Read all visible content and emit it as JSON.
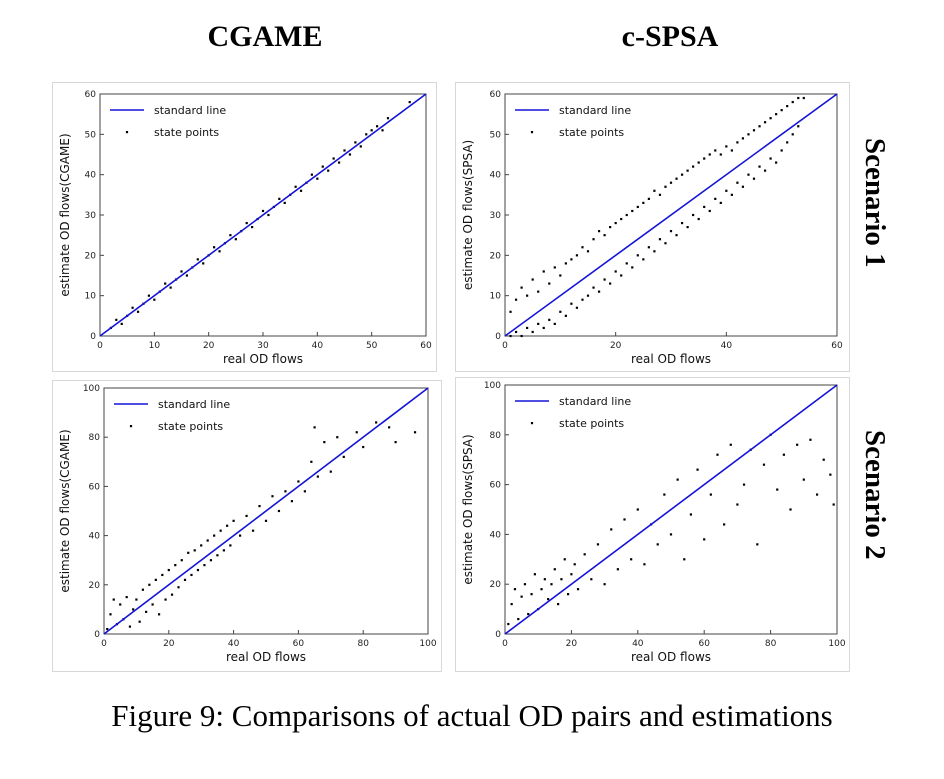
{
  "column_titles": [
    "CGAME",
    "c-SPSA"
  ],
  "row_titles": [
    "Scenario 1",
    "Scenario 2"
  ],
  "caption": "Figure 9: Comparisons of actual OD pairs and estimations",
  "colors": {
    "line": "#1414d8",
    "points": "#000000",
    "frame": "#444444"
  },
  "chart_data": [
    {
      "type": "scatter",
      "panel": "Scenario 1 - CGAME",
      "xlabel": "real OD flows",
      "ylabel": "estimate OD flows(CGAME)",
      "xlim": [
        0,
        60
      ],
      "ylim": [
        0,
        60
      ],
      "xticks": [
        0,
        10,
        20,
        30,
        40,
        50,
        60
      ],
      "yticks": [
        0,
        10,
        20,
        30,
        40,
        50,
        60
      ],
      "legend": [
        "standard line",
        "state points"
      ],
      "legend_position": "top-left",
      "standard_line": [
        [
          0,
          0
        ],
        [
          60,
          60
        ]
      ],
      "points": [
        [
          2,
          2
        ],
        [
          3,
          4
        ],
        [
          4,
          3
        ],
        [
          5,
          5
        ],
        [
          6,
          7
        ],
        [
          7,
          6
        ],
        [
          8,
          8
        ],
        [
          9,
          10
        ],
        [
          10,
          9
        ],
        [
          11,
          11
        ],
        [
          12,
          13
        ],
        [
          13,
          12
        ],
        [
          14,
          14
        ],
        [
          15,
          16
        ],
        [
          16,
          15
        ],
        [
          17,
          17
        ],
        [
          18,
          19
        ],
        [
          19,
          18
        ],
        [
          20,
          20
        ],
        [
          21,
          22
        ],
        [
          22,
          21
        ],
        [
          23,
          23
        ],
        [
          24,
          25
        ],
        [
          25,
          24
        ],
        [
          26,
          26
        ],
        [
          27,
          28
        ],
        [
          28,
          27
        ],
        [
          29,
          29
        ],
        [
          30,
          31
        ],
        [
          31,
          30
        ],
        [
          32,
          32
        ],
        [
          33,
          34
        ],
        [
          34,
          33
        ],
        [
          35,
          35
        ],
        [
          36,
          37
        ],
        [
          37,
          36
        ],
        [
          38,
          38
        ],
        [
          39,
          40
        ],
        [
          40,
          39
        ],
        [
          41,
          42
        ],
        [
          42,
          41
        ],
        [
          43,
          44
        ],
        [
          44,
          43
        ],
        [
          45,
          46
        ],
        [
          46,
          45
        ],
        [
          47,
          48
        ],
        [
          48,
          47
        ],
        [
          49,
          50
        ],
        [
          50,
          51
        ],
        [
          51,
          52
        ],
        [
          52,
          51
        ],
        [
          53,
          54
        ],
        [
          57,
          58
        ]
      ]
    },
    {
      "type": "scatter",
      "panel": "Scenario 1 - c-SPSA",
      "xlabel": "real OD flows",
      "ylabel": "estimate OD flows(SPSA)",
      "xlim": [
        0,
        60
      ],
      "ylim": [
        0,
        60
      ],
      "xticks": [
        0,
        20,
        40,
        60
      ],
      "yticks": [
        0,
        10,
        20,
        30,
        40,
        50,
        60
      ],
      "legend": [
        "standard line",
        "state points"
      ],
      "legend_position": "top-left",
      "standard_line": [
        [
          0,
          0
        ],
        [
          60,
          60
        ]
      ],
      "points": [
        [
          1,
          0
        ],
        [
          1,
          6
        ],
        [
          2,
          1
        ],
        [
          2,
          9
        ],
        [
          3,
          0
        ],
        [
          3,
          12
        ],
        [
          4,
          2
        ],
        [
          4,
          10
        ],
        [
          5,
          1
        ],
        [
          5,
          14
        ],
        [
          6,
          3
        ],
        [
          6,
          11
        ],
        [
          7,
          2
        ],
        [
          7,
          16
        ],
        [
          8,
          4
        ],
        [
          8,
          13
        ],
        [
          9,
          3
        ],
        [
          9,
          17
        ],
        [
          10,
          6
        ],
        [
          10,
          15
        ],
        [
          11,
          5
        ],
        [
          11,
          18
        ],
        [
          12,
          8
        ],
        [
          12,
          19
        ],
        [
          13,
          7
        ],
        [
          13,
          20
        ],
        [
          14,
          9
        ],
        [
          14,
          22
        ],
        [
          15,
          10
        ],
        [
          15,
          21
        ],
        [
          16,
          12
        ],
        [
          16,
          24
        ],
        [
          17,
          11
        ],
        [
          17,
          26
        ],
        [
          18,
          14
        ],
        [
          18,
          25
        ],
        [
          19,
          13
        ],
        [
          19,
          27
        ],
        [
          20,
          16
        ],
        [
          20,
          28
        ],
        [
          21,
          15
        ],
        [
          21,
          29
        ],
        [
          22,
          18
        ],
        [
          22,
          30
        ],
        [
          23,
          17
        ],
        [
          23,
          31
        ],
        [
          24,
          20
        ],
        [
          24,
          32
        ],
        [
          25,
          19
        ],
        [
          25,
          33
        ],
        [
          26,
          22
        ],
        [
          26,
          34
        ],
        [
          27,
          21
        ],
        [
          27,
          36
        ],
        [
          28,
          24
        ],
        [
          28,
          35
        ],
        [
          29,
          23
        ],
        [
          29,
          37
        ],
        [
          30,
          26
        ],
        [
          30,
          38
        ],
        [
          31,
          25
        ],
        [
          31,
          39
        ],
        [
          32,
          28
        ],
        [
          32,
          40
        ],
        [
          33,
          27
        ],
        [
          33,
          41
        ],
        [
          34,
          30
        ],
        [
          34,
          42
        ],
        [
          35,
          29
        ],
        [
          35,
          43
        ],
        [
          36,
          32
        ],
        [
          36,
          44
        ],
        [
          37,
          31
        ],
        [
          37,
          45
        ],
        [
          38,
          34
        ],
        [
          38,
          46
        ],
        [
          39,
          33
        ],
        [
          39,
          45
        ],
        [
          40,
          36
        ],
        [
          40,
          47
        ],
        [
          41,
          35
        ],
        [
          41,
          46
        ],
        [
          42,
          38
        ],
        [
          42,
          48
        ],
        [
          43,
          37
        ],
        [
          43,
          49
        ],
        [
          44,
          40
        ],
        [
          44,
          50
        ],
        [
          45,
          39
        ],
        [
          45,
          51
        ],
        [
          46,
          42
        ],
        [
          46,
          52
        ],
        [
          47,
          41
        ],
        [
          47,
          53
        ],
        [
          48,
          44
        ],
        [
          48,
          54
        ],
        [
          49,
          43
        ],
        [
          49,
          55
        ],
        [
          50,
          46
        ],
        [
          50,
          56
        ],
        [
          51,
          48
        ],
        [
          51,
          57
        ],
        [
          52,
          50
        ],
        [
          52,
          58
        ],
        [
          53,
          52
        ],
        [
          53,
          59
        ],
        [
          54,
          59
        ]
      ]
    },
    {
      "type": "scatter",
      "panel": "Scenario 2 - CGAME",
      "xlabel": "real OD flows",
      "ylabel": "estimate OD flows(CGAME)",
      "xlim": [
        0,
        100
      ],
      "ylim": [
        0,
        100
      ],
      "xticks": [
        0,
        20,
        40,
        60,
        80,
        100
      ],
      "yticks": [
        0,
        20,
        40,
        60,
        80,
        100
      ],
      "legend": [
        "standard line",
        "state points"
      ],
      "legend_position": "top-left",
      "standard_line": [
        [
          0,
          0
        ],
        [
          100,
          100
        ]
      ],
      "points": [
        [
          1,
          2
        ],
        [
          2,
          8
        ],
        [
          3,
          14
        ],
        [
          4,
          4
        ],
        [
          5,
          12
        ],
        [
          6,
          6
        ],
        [
          7,
          15
        ],
        [
          8,
          3
        ],
        [
          9,
          10
        ],
        [
          10,
          14
        ],
        [
          11,
          5
        ],
        [
          12,
          18
        ],
        [
          13,
          9
        ],
        [
          14,
          20
        ],
        [
          15,
          12
        ],
        [
          16,
          22
        ],
        [
          17,
          8
        ],
        [
          18,
          24
        ],
        [
          19,
          14
        ],
        [
          20,
          26
        ],
        [
          21,
          16
        ],
        [
          22,
          28
        ],
        [
          23,
          19
        ],
        [
          24,
          30
        ],
        [
          25,
          22
        ],
        [
          26,
          33
        ],
        [
          27,
          24
        ],
        [
          28,
          34
        ],
        [
          29,
          26
        ],
        [
          30,
          36
        ],
        [
          31,
          28
        ],
        [
          32,
          38
        ],
        [
          33,
          30
        ],
        [
          34,
          40
        ],
        [
          35,
          32
        ],
        [
          36,
          42
        ],
        [
          37,
          34
        ],
        [
          38,
          44
        ],
        [
          39,
          36
        ],
        [
          40,
          46
        ],
        [
          42,
          40
        ],
        [
          44,
          48
        ],
        [
          46,
          42
        ],
        [
          48,
          52
        ],
        [
          50,
          46
        ],
        [
          52,
          56
        ],
        [
          54,
          50
        ],
        [
          56,
          58
        ],
        [
          58,
          54
        ],
        [
          60,
          62
        ],
        [
          62,
          58
        ],
        [
          64,
          70
        ],
        [
          65,
          84
        ],
        [
          66,
          64
        ],
        [
          68,
          78
        ],
        [
          70,
          66
        ],
        [
          72,
          80
        ],
        [
          74,
          72
        ],
        [
          78,
          82
        ],
        [
          80,
          76
        ],
        [
          84,
          86
        ],
        [
          88,
          84
        ],
        [
          90,
          78
        ],
        [
          96,
          82
        ]
      ]
    },
    {
      "type": "scatter",
      "panel": "Scenario 2 - c-SPSA",
      "xlabel": "real OD flows",
      "ylabel": "estimate OD flows(SPSA)",
      "xlim": [
        0,
        100
      ],
      "ylim": [
        0,
        100
      ],
      "xticks": [
        0,
        20,
        40,
        60,
        80,
        100
      ],
      "yticks": [
        0,
        20,
        40,
        60,
        80,
        100
      ],
      "legend": [
        "standard line",
        "state points"
      ],
      "legend_position": "top-left",
      "standard_line": [
        [
          0,
          0
        ],
        [
          100,
          100
        ]
      ],
      "points": [
        [
          1,
          4
        ],
        [
          2,
          12
        ],
        [
          3,
          18
        ],
        [
          4,
          6
        ],
        [
          5,
          15
        ],
        [
          6,
          20
        ],
        [
          7,
          8
        ],
        [
          8,
          16
        ],
        [
          9,
          24
        ],
        [
          10,
          10
        ],
        [
          11,
          18
        ],
        [
          12,
          22
        ],
        [
          13,
          14
        ],
        [
          14,
          20
        ],
        [
          15,
          26
        ],
        [
          16,
          12
        ],
        [
          17,
          22
        ],
        [
          18,
          30
        ],
        [
          19,
          16
        ],
        [
          20,
          24
        ],
        [
          21,
          28
        ],
        [
          22,
          18
        ],
        [
          24,
          32
        ],
        [
          26,
          22
        ],
        [
          28,
          36
        ],
        [
          30,
          20
        ],
        [
          32,
          42
        ],
        [
          34,
          26
        ],
        [
          36,
          46
        ],
        [
          38,
          30
        ],
        [
          40,
          50
        ],
        [
          42,
          28
        ],
        [
          44,
          44
        ],
        [
          46,
          36
        ],
        [
          48,
          56
        ],
        [
          50,
          40
        ],
        [
          52,
          62
        ],
        [
          54,
          30
        ],
        [
          56,
          48
        ],
        [
          58,
          66
        ],
        [
          60,
          38
        ],
        [
          62,
          56
        ],
        [
          64,
          72
        ],
        [
          66,
          44
        ],
        [
          68,
          76
        ],
        [
          70,
          52
        ],
        [
          72,
          60
        ],
        [
          74,
          74
        ],
        [
          76,
          36
        ],
        [
          78,
          68
        ],
        [
          80,
          80
        ],
        [
          82,
          58
        ],
        [
          84,
          72
        ],
        [
          86,
          50
        ],
        [
          88,
          76
        ],
        [
          90,
          62
        ],
        [
          92,
          78
        ],
        [
          94,
          56
        ],
        [
          96,
          70
        ],
        [
          98,
          64
        ],
        [
          99,
          52
        ]
      ]
    }
  ]
}
